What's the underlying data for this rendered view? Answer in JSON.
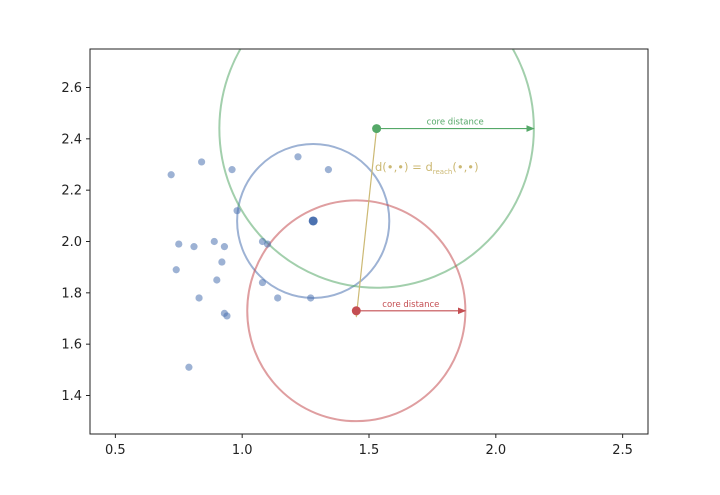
{
  "chart_data": {
    "type": "scatter",
    "title": "",
    "xlabel": "",
    "ylabel": "",
    "xlim": [
      0.4,
      2.6
    ],
    "ylim": [
      1.25,
      2.75
    ],
    "grid": false,
    "x_ticks": [
      "0.5",
      "1.0",
      "1.5",
      "2.0",
      "2.5"
    ],
    "x_tick_values": [
      0.5,
      1.0,
      1.5,
      2.0,
      2.5
    ],
    "y_ticks": [
      "1.4",
      "1.6",
      "1.8",
      "2.0",
      "2.2",
      "2.4",
      "2.6"
    ],
    "y_tick_values": [
      1.4,
      1.6,
      1.8,
      2.0,
      2.2,
      2.4,
      2.6
    ],
    "points": [
      {
        "x": 0.72,
        "y": 2.26
      },
      {
        "x": 0.84,
        "y": 2.31
      },
      {
        "x": 0.96,
        "y": 2.28
      },
      {
        "x": 1.22,
        "y": 2.33
      },
      {
        "x": 1.34,
        "y": 2.28
      },
      {
        "x": 0.98,
        "y": 2.12
      },
      {
        "x": 0.75,
        "y": 1.99
      },
      {
        "x": 0.81,
        "y": 1.98
      },
      {
        "x": 0.89,
        "y": 2.0
      },
      {
        "x": 0.93,
        "y": 1.98
      },
      {
        "x": 1.08,
        "y": 2.0
      },
      {
        "x": 1.1,
        "y": 1.99
      },
      {
        "x": 0.92,
        "y": 1.92
      },
      {
        "x": 0.74,
        "y": 1.89
      },
      {
        "x": 0.9,
        "y": 1.85
      },
      {
        "x": 1.08,
        "y": 1.84
      },
      {
        "x": 0.83,
        "y": 1.78
      },
      {
        "x": 1.14,
        "y": 1.78
      },
      {
        "x": 1.27,
        "y": 1.78
      },
      {
        "x": 0.93,
        "y": 1.72
      },
      {
        "x": 0.94,
        "y": 1.71
      },
      {
        "x": 0.79,
        "y": 1.51
      }
    ],
    "point_color": "#4c72b0",
    "highlight_points": [
      {
        "x": 1.28,
        "y": 2.08,
        "color": "#4c72b0",
        "circle_radius": 0.3
      },
      {
        "x": 1.53,
        "y": 2.44,
        "color": "#55a868",
        "circle_radius": 0.62
      },
      {
        "x": 1.45,
        "y": 1.73,
        "color": "#c44e52",
        "circle_radius": 0.43
      }
    ],
    "annotations": [
      {
        "text": "core distance",
        "color": "#55a868",
        "from": [
          1.53,
          2.44
        ],
        "to": [
          2.15,
          2.44
        ]
      },
      {
        "text": "core distance",
        "color": "#c44e52",
        "from": [
          1.45,
          1.73
        ],
        "to": [
          1.88,
          1.73
        ]
      }
    ],
    "reach_arrow": {
      "from": [
        1.53,
        2.44
      ],
      "to": [
        1.45,
        1.73
      ],
      "color": "#ccb974"
    },
    "reach_label": {
      "text": "d(•,•) = d",
      "subscript": "reach",
      "suffix": "(•,•)"
    }
  }
}
